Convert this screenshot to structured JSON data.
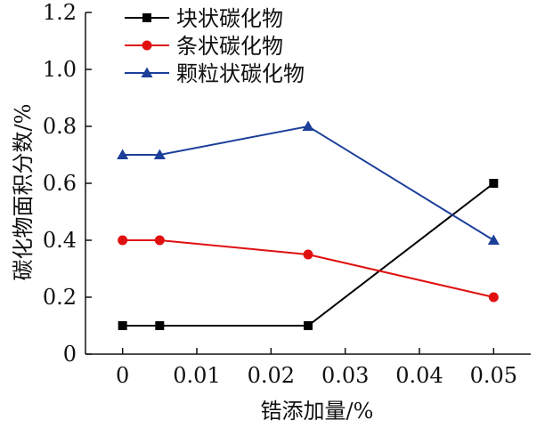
{
  "chart_data": {
    "type": "line",
    "title": "",
    "xlabel": "锆添加量/%",
    "ylabel": "碳化物面积分数/%",
    "xlim": [
      -0.005,
      0.055
    ],
    "ylim": [
      0,
      1.2
    ],
    "x_ticks": [
      0,
      0.01,
      0.02,
      0.03,
      0.04,
      0.05
    ],
    "x_tick_labels": [
      "0",
      "0.01",
      "0.02",
      "0.03",
      "0.04",
      "0.05"
    ],
    "y_ticks": [
      0,
      0.2,
      0.4,
      0.6,
      0.8,
      1.0,
      1.2
    ],
    "y_tick_labels": [
      "0",
      "0.2",
      "0.4",
      "0.6",
      "0.8",
      "1.0",
      "1.2"
    ],
    "grid": false,
    "legend_position": "top-left",
    "series": [
      {
        "name": "块状碳化物",
        "color": "#000000",
        "marker": "square",
        "x": [
          0,
          0.005,
          0.025,
          0.05
        ],
        "y": [
          0.1,
          0.1,
          0.1,
          0.6
        ]
      },
      {
        "name": "条状碳化物",
        "color": "#e01010",
        "marker": "circle",
        "x": [
          0,
          0.005,
          0.025,
          0.05
        ],
        "y": [
          0.4,
          0.4,
          0.35,
          0.2
        ]
      },
      {
        "name": "颗粒状碳化物",
        "color": "#1c3f9a",
        "marker": "triangle",
        "x": [
          0,
          0.005,
          0.025,
          0.05
        ],
        "y": [
          0.7,
          0.7,
          0.8,
          0.4
        ]
      }
    ]
  }
}
